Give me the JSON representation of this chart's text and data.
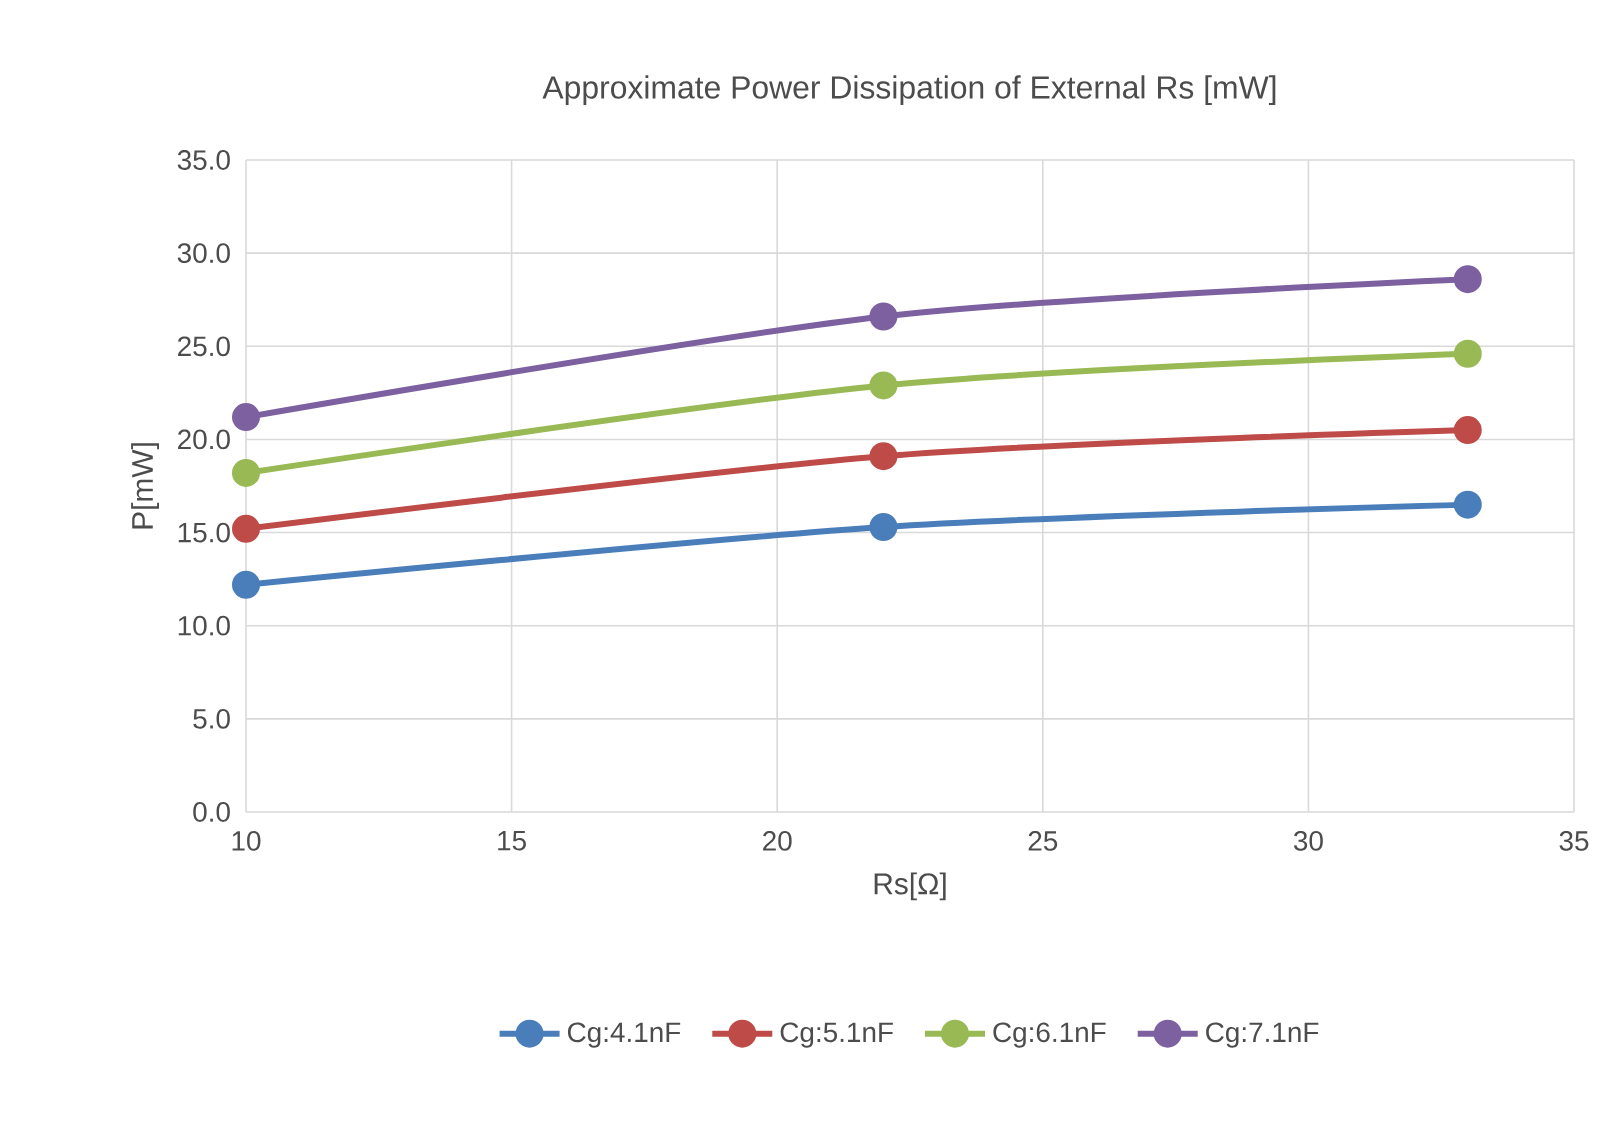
{
  "chart_data": {
    "type": "line",
    "title": "Approximate Power Dissipation of External Rs [mW]",
    "xlabel": "Rs[Ω]",
    "ylabel": "P[mW]",
    "x": [
      10,
      22,
      33
    ],
    "series": [
      {
        "name": "Cg:4.1nF",
        "color": "#4a7ebb",
        "values": [
          12.2,
          15.3,
          16.5
        ]
      },
      {
        "name": "Cg:5.1nF",
        "color": "#be4b48",
        "values": [
          15.2,
          19.1,
          20.5
        ]
      },
      {
        "name": "Cg:6.1nF",
        "color": "#98b954",
        "values": [
          18.2,
          22.9,
          24.6
        ]
      },
      {
        "name": "Cg:7.1nF",
        "color": "#7d60a0",
        "values": [
          21.2,
          26.6,
          28.6
        ]
      }
    ],
    "xlim": [
      10,
      35
    ],
    "xticks": [
      10,
      15,
      20,
      25,
      30,
      35
    ],
    "ylim": [
      0,
      35
    ],
    "yticks": [
      {
        "value": 0,
        "label": "0.0"
      },
      {
        "value": 5,
        "label": "5.0"
      },
      {
        "value": 10,
        "label": "10.0"
      },
      {
        "value": 15,
        "label": "15.0"
      },
      {
        "value": 20,
        "label": "20.0"
      },
      {
        "value": 25,
        "label": "25.0"
      },
      {
        "value": 30,
        "label": "30.0"
      },
      {
        "value": 35,
        "label": "35.0"
      }
    ],
    "grid": true,
    "legend": "bottom",
    "marker": "circle",
    "line_style": "solid"
  }
}
